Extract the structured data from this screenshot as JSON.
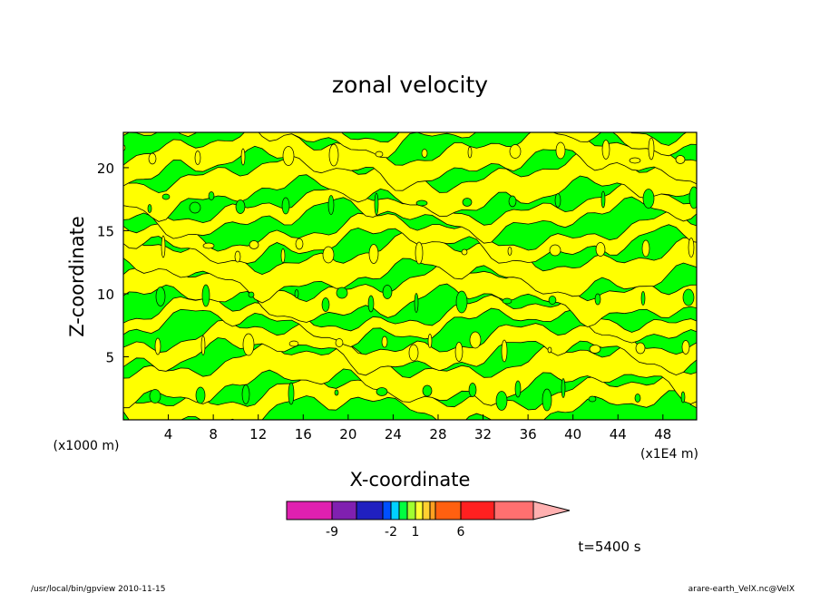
{
  "chart_data": {
    "type": "heatmap",
    "title": "zonal velocity",
    "xlabel": "X-coordinate",
    "ylabel": "Z-coordinate",
    "x_unit_label": "(x1E4 m)",
    "y_unit_label": "(x1000 m)",
    "xlim": [
      0,
      51
    ],
    "ylim": [
      0,
      22.8
    ],
    "x_ticks": [
      "4",
      "8",
      "12",
      "16",
      "20",
      "24",
      "28",
      "32",
      "36",
      "40",
      "44",
      "48"
    ],
    "y_ticks": [
      "5",
      "10",
      "15",
      "20"
    ],
    "time_label": "t=5400 s",
    "colorbar": {
      "colors": [
        "#e020b0",
        "#8020b0",
        "#2020c0",
        "#0050ff",
        "#00d0ff",
        "#00ff40",
        "#a0ff30",
        "#ffff30",
        "#ffd030",
        "#ffa020",
        "#ff6010",
        "#ff2020",
        "#ff7070",
        "#ffb0b0"
      ],
      "labels": [
        "-9",
        "-2",
        "1",
        "6"
      ]
    },
    "dominant_fill": {
      "green": "#00ff00",
      "yellow": "#ffff00",
      "line": "#000000"
    }
  },
  "footer": {
    "left": "/usr/local/bin/gpview  2010-11-15",
    "right": "arare-earth_VelX.nc@VelX"
  }
}
